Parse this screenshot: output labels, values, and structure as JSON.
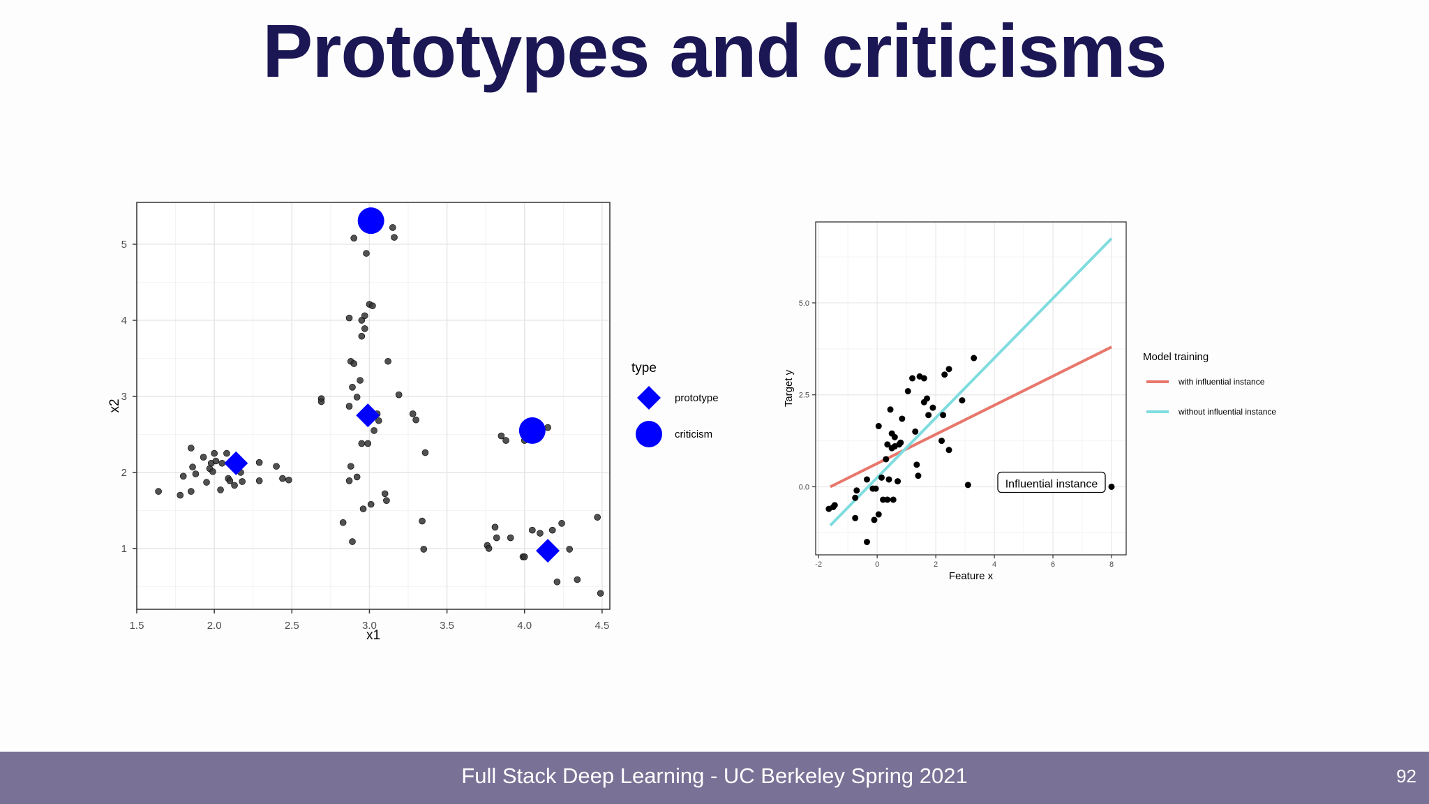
{
  "slide": {
    "title": "Prototypes and criticisms",
    "footer": "Full Stack Deep Learning - UC Berkeley Spring 2021",
    "page_number": "92"
  },
  "colors": {
    "title": "#1b1654",
    "footer_bg": "#7a7196",
    "marker": "#0000ff",
    "red_line": "#e8776b",
    "blue_line": "#7fdcdf"
  },
  "chart_data": [
    {
      "type": "scatter",
      "xlabel": "x1",
      "ylabel": "x2",
      "xlim": [
        1.5,
        4.55
      ],
      "ylim": [
        0.2,
        5.55
      ],
      "xticks": [
        1.5,
        2.0,
        2.5,
        3.0,
        3.5,
        4.0,
        4.5
      ],
      "xtick_labels": [
        "1.5",
        "2.0",
        "2.5",
        "3.0",
        "3.5",
        "4.0",
        "4.5"
      ],
      "yticks": [
        1,
        2,
        3,
        4,
        5
      ],
      "ytick_labels": [
        "1",
        "2",
        "3",
        "4",
        "5"
      ],
      "legend": {
        "title": "type",
        "entries": [
          "prototype",
          "criticism"
        ],
        "placement": "right"
      },
      "points": [
        [
          1.64,
          1.75
        ],
        [
          1.78,
          1.7
        ],
        [
          1.8,
          1.95
        ],
        [
          1.85,
          1.75
        ],
        [
          1.86,
          2.07
        ],
        [
          1.85,
          2.32
        ],
        [
          1.88,
          1.98
        ],
        [
          1.93,
          2.2
        ],
        [
          1.95,
          1.87
        ],
        [
          1.97,
          2.05
        ],
        [
          1.98,
          2.12
        ],
        [
          2.0,
          2.25
        ],
        [
          1.99,
          2.01
        ],
        [
          2.01,
          2.15
        ],
        [
          2.04,
          1.77
        ],
        [
          2.05,
          2.12
        ],
        [
          2.08,
          2.25
        ],
        [
          2.09,
          1.92
        ],
        [
          2.1,
          1.89
        ],
        [
          2.13,
          1.83
        ],
        [
          2.14,
          2.04
        ],
        [
          2.17,
          2.0
        ],
        [
          2.18,
          1.88
        ],
        [
          2.29,
          2.13
        ],
        [
          2.29,
          1.89
        ],
        [
          2.4,
          2.08
        ],
        [
          2.44,
          1.92
        ],
        [
          2.48,
          1.9
        ],
        [
          2.69,
          2.97
        ],
        [
          2.69,
          2.93
        ],
        [
          2.83,
          1.34
        ],
        [
          2.87,
          4.03
        ],
        [
          2.87,
          2.87
        ],
        [
          2.87,
          1.89
        ],
        [
          2.88,
          3.46
        ],
        [
          2.88,
          2.08
        ],
        [
          2.89,
          1.09
        ],
        [
          2.89,
          3.12
        ],
        [
          2.9,
          3.43
        ],
        [
          2.9,
          5.08
        ],
        [
          2.92,
          1.94
        ],
        [
          2.92,
          2.99
        ],
        [
          2.94,
          3.21
        ],
        [
          2.95,
          4.0
        ],
        [
          2.95,
          3.79
        ],
        [
          2.95,
          2.38
        ],
        [
          2.96,
          1.52
        ],
        [
          2.97,
          3.89
        ],
        [
          2.97,
          4.06
        ],
        [
          2.98,
          4.88
        ],
        [
          2.99,
          2.38
        ],
        [
          3.0,
          4.21
        ],
        [
          3.01,
          1.58
        ],
        [
          3.02,
          4.19
        ],
        [
          3.03,
          2.55
        ],
        [
          3.05,
          2.77
        ],
        [
          3.06,
          2.68
        ],
        [
          3.1,
          1.72
        ],
        [
          3.11,
          1.63
        ],
        [
          3.12,
          3.46
        ],
        [
          3.15,
          5.22
        ],
        [
          3.16,
          5.09
        ],
        [
          3.19,
          3.02
        ],
        [
          3.28,
          2.77
        ],
        [
          3.3,
          2.69
        ],
        [
          3.34,
          1.36
        ],
        [
          3.35,
          0.99
        ],
        [
          3.36,
          2.26
        ],
        [
          3.76,
          1.04
        ],
        [
          3.77,
          1.0
        ],
        [
          3.81,
          1.28
        ],
        [
          3.82,
          1.14
        ],
        [
          3.85,
          2.48
        ],
        [
          3.88,
          2.42
        ],
        [
          3.91,
          1.14
        ],
        [
          4.0,
          2.42
        ],
        [
          4.04,
          2.45
        ],
        [
          3.99,
          0.89
        ],
        [
          4.0,
          0.89
        ],
        [
          4.05,
          1.24
        ],
        [
          4.1,
          1.2
        ],
        [
          4.15,
          0.88
        ],
        [
          4.18,
          1.24
        ],
        [
          4.21,
          0.56
        ],
        [
          4.24,
          1.33
        ],
        [
          4.29,
          0.99
        ],
        [
          4.34,
          0.59
        ],
        [
          4.47,
          1.41
        ],
        [
          4.49,
          0.41
        ],
        [
          4.15,
          2.59
        ]
      ],
      "prototypes": [
        [
          2.14,
          2.12
        ],
        [
          2.99,
          2.75
        ],
        [
          4.15,
          0.97
        ]
      ],
      "criticisms": [
        [
          3.01,
          5.31
        ],
        [
          4.05,
          2.55
        ]
      ]
    },
    {
      "type": "scatter",
      "xlabel": "Feature x",
      "ylabel": "Target y",
      "xlim": [
        -2.1,
        8.5
      ],
      "ylim": [
        -1.85,
        7.2
      ],
      "xticks": [
        -2,
        0,
        2,
        4,
        6,
        8
      ],
      "xtick_labels": [
        "-2",
        "0",
        "2",
        "4",
        "6",
        "8"
      ],
      "yticks": [
        0,
        2.5,
        5
      ],
      "ytick_labels": [
        "0.0",
        "2.5",
        "5.0"
      ],
      "legend": {
        "title": "Model training",
        "entries": [
          "with influential instance",
          "without influential instance"
        ],
        "placement": "right"
      },
      "annotation": {
        "text": "Influential instance",
        "x": 8,
        "y": 0
      },
      "series": [
        {
          "name": "with influential instance",
          "x": [
            -1.6,
            8
          ],
          "y": [
            0,
            3.8
          ]
        },
        {
          "name": "without influential instance",
          "x": [
            -1.6,
            8
          ],
          "y": [
            -1.05,
            6.75
          ]
        }
      ],
      "points": [
        [
          -1.65,
          -0.6
        ],
        [
          -1.5,
          -0.55
        ],
        [
          -1.45,
          -0.5
        ],
        [
          -0.75,
          -0.85
        ],
        [
          -0.75,
          -0.3
        ],
        [
          -0.7,
          -0.1
        ],
        [
          -0.35,
          -1.5
        ],
        [
          -0.35,
          0.2
        ],
        [
          -0.15,
          -0.05
        ],
        [
          -0.1,
          -0.9
        ],
        [
          -0.05,
          -0.05
        ],
        [
          0.05,
          1.65
        ],
        [
          0.05,
          -0.75
        ],
        [
          0.15,
          0.25
        ],
        [
          0.2,
          -0.35
        ],
        [
          0.3,
          0.75
        ],
        [
          0.35,
          -0.35
        ],
        [
          0.35,
          1.15
        ],
        [
          0.4,
          0.2
        ],
        [
          0.45,
          2.1
        ],
        [
          0.5,
          1.05
        ],
        [
          0.5,
          1.45
        ],
        [
          0.55,
          -0.35
        ],
        [
          0.6,
          1.35
        ],
        [
          0.6,
          1.1
        ],
        [
          0.7,
          0.15
        ],
        [
          0.75,
          1.15
        ],
        [
          0.8,
          1.2
        ],
        [
          0.85,
          1.85
        ],
        [
          1.05,
          2.6
        ],
        [
          1.2,
          2.95
        ],
        [
          1.3,
          1.5
        ],
        [
          1.35,
          0.6
        ],
        [
          1.4,
          0.3
        ],
        [
          1.45,
          3.0
        ],
        [
          1.6,
          2.95
        ],
        [
          1.6,
          2.3
        ],
        [
          1.7,
          2.4
        ],
        [
          1.75,
          1.95
        ],
        [
          1.9,
          2.15
        ],
        [
          2.2,
          1.25
        ],
        [
          2.25,
          1.95
        ],
        [
          2.3,
          3.05
        ],
        [
          2.45,
          3.2
        ],
        [
          2.45,
          1.0
        ],
        [
          2.9,
          2.35
        ],
        [
          3.1,
          0.05
        ],
        [
          3.3,
          3.5
        ],
        [
          8,
          0
        ]
      ]
    }
  ]
}
